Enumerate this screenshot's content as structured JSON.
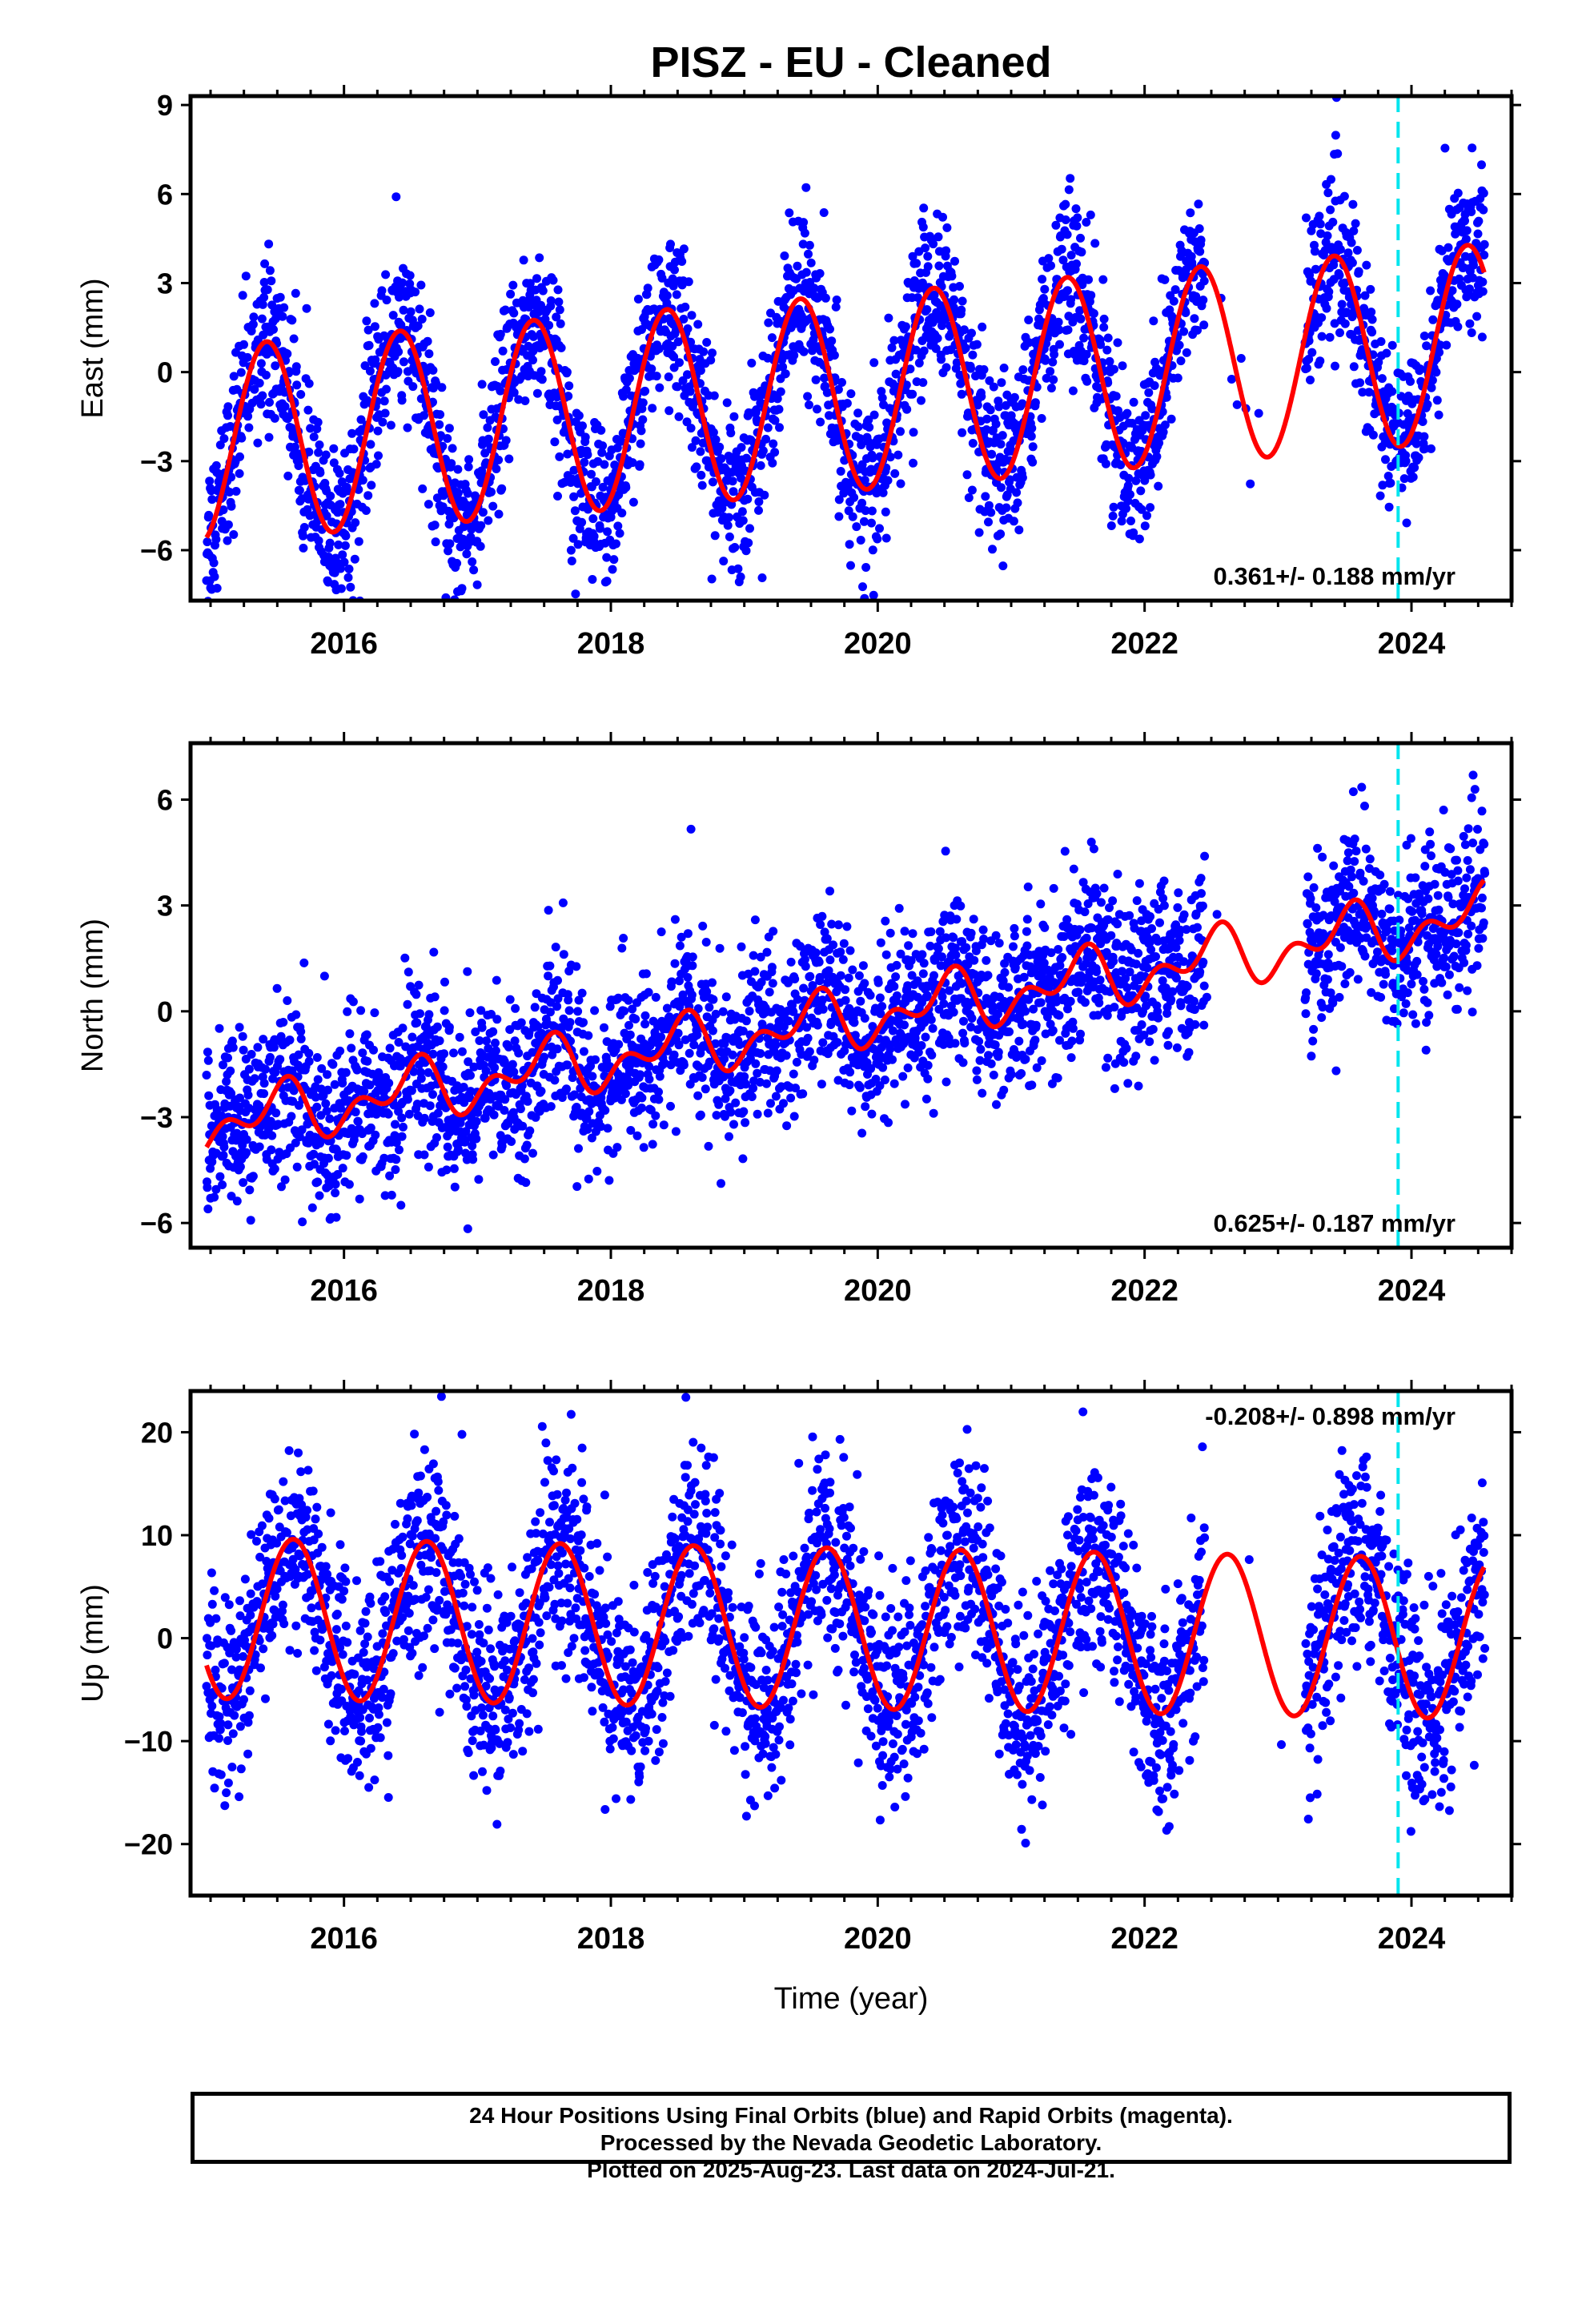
{
  "chart_data": {
    "title": "PISZ  - EU - Cleaned",
    "type": "scatter",
    "xlabel": "Time (year)",
    "xlim": [
      2014.85,
      2024.75
    ],
    "x_ticks": [
      2016,
      2018,
      2020,
      2022,
      2024
    ],
    "x_tick_labels": [
      "2016",
      "2018",
      "2020",
      "2022",
      "2024"
    ],
    "event_line_x": 2023.9,
    "colors": {
      "points": "#0000ff",
      "model": "#ff0000",
      "event": "#00e5ee"
    },
    "panels": [
      {
        "name": "east",
        "ylabel": "East (mm)",
        "ylim": [
          -7.7,
          9.3
        ],
        "y_ticks": [
          -6,
          -3,
          0,
          3,
          6,
          9
        ],
        "y_tick_labels": [
          "−6",
          "−3",
          "0",
          "3",
          "6",
          "9"
        ],
        "rate_label": "0.361+/- 0.188 mm/yr",
        "rate_label_position": "bottom-right",
        "model": {
          "offset": -0.8,
          "rate": 0.361,
          "annual_amplitude": 3.3,
          "peak_year_fraction": 0.42,
          "semiannual_amplitude": 0.0
        },
        "scatter_spread": 1.4,
        "series": [
          {
            "name": "",
            "style": "points"
          },
          {
            "name": "",
            "style": "line"
          }
        ]
      },
      {
        "name": "north",
        "ylabel": "North (mm)",
        "ylim": [
          -6.7,
          7.6
        ],
        "y_ticks": [
          -6,
          -3,
          0,
          3,
          6
        ],
        "y_tick_labels": [
          "−6",
          "−3",
          "0",
          "3",
          "6"
        ],
        "rate_label": "0.625+/- 0.187 mm/yr",
        "rate_label_position": "bottom-right",
        "model": {
          "offset": -0.4,
          "rate": 0.625,
          "annual_amplitude": 0.6,
          "peak_year_fraction": 0.5,
          "semiannual_amplitude": 0.5
        },
        "scatter_spread": 1.2,
        "series": [
          {
            "name": "",
            "style": "points"
          },
          {
            "name": "",
            "style": "line"
          }
        ]
      },
      {
        "name": "up",
        "ylabel": "Up (mm)",
        "ylim": [
          -25,
          24
        ],
        "y_ticks": [
          -20,
          -10,
          0,
          10,
          20
        ],
        "y_tick_labels": [
          "−20",
          "−10",
          "0",
          "10",
          "20"
        ],
        "rate_label": "-0.208+/- 0.898 mm/yr",
        "rate_label_position": "top-right",
        "model": {
          "offset": 1.0,
          "rate": -0.208,
          "annual_amplitude": 7.8,
          "peak_year_fraction": 0.62,
          "semiannual_amplitude": 0.0
        },
        "scatter_spread": 5.0,
        "series": [
          {
            "name": "",
            "style": "points"
          },
          {
            "name": "",
            "style": "line"
          }
        ]
      }
    ],
    "data_gaps": [
      [
        2022.45,
        2023.2
      ]
    ],
    "data_start": 2014.97,
    "data_end": 2024.55
  },
  "footer": {
    "line1": "24 Hour Positions Using Final Orbits (blue) and Rapid Orbits (magenta).",
    "line2": "Processed by the Nevada Geodetic Laboratory.",
    "line3": "Plotted on 2025-Aug-23. Last data on 2024-Jul-21."
  }
}
